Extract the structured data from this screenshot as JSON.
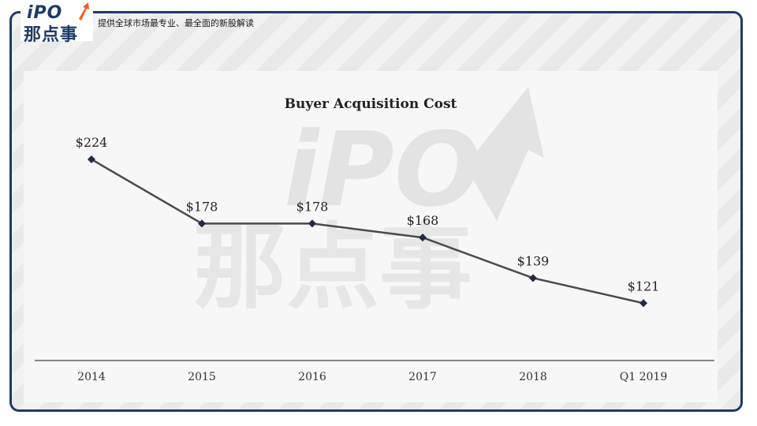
{
  "header": {
    "logo_top": "iPO",
    "logo_bottom": "那点事",
    "tagline": "提供全球市场最专业、最全面的新股解读"
  },
  "watermark": {
    "top": "iPO",
    "bottom": "那点事"
  },
  "chart_data": {
    "type": "line",
    "title": "Buyer Acquisition Cost",
    "categories": [
      "2014",
      "2015",
      "2016",
      "2017",
      "2018",
      "Q1 2019"
    ],
    "series": [
      {
        "values": [
          224,
          178,
          178,
          168,
          139,
          121
        ],
        "labels": [
          "$224",
          "$178",
          "$178",
          "$168",
          "$139",
          "$121"
        ]
      }
    ],
    "xlabel": "",
    "ylabel": "",
    "ylim": [
      100,
      240
    ],
    "grid": false,
    "legend": "none",
    "colors": {
      "line": "#4a4a4a",
      "marker": "#1f2a44",
      "axis": "#888888",
      "text": "#222222"
    }
  }
}
